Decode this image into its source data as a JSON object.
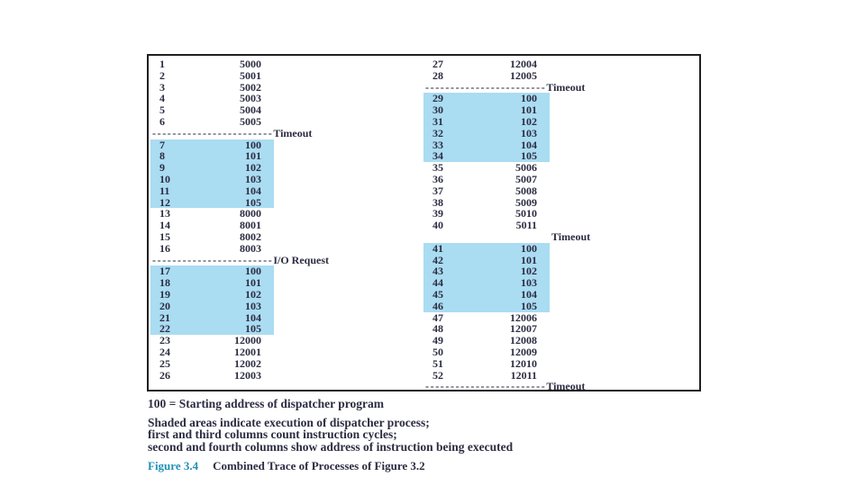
{
  "colors": {
    "shaded": "#aadcf2",
    "text": "#2c2c42",
    "figure_label": "#2191b5",
    "border": "#1f1f1f"
  },
  "trace": {
    "columns": [
      {
        "side": "left",
        "rows": [
          {
            "type": "entry",
            "cycle": "1",
            "addr": "5000",
            "shaded": false
          },
          {
            "type": "entry",
            "cycle": "2",
            "addr": "5001",
            "shaded": false
          },
          {
            "type": "entry",
            "cycle": "3",
            "addr": "5002",
            "shaded": false
          },
          {
            "type": "entry",
            "cycle": "4",
            "addr": "5003",
            "shaded": false
          },
          {
            "type": "entry",
            "cycle": "5",
            "addr": "5004",
            "shaded": false
          },
          {
            "type": "entry",
            "cycle": "6",
            "addr": "5005",
            "shaded": false
          },
          {
            "type": "sep",
            "dashes": "------------------------",
            "label": "Timeout"
          },
          {
            "type": "entry",
            "cycle": "7",
            "addr": "100",
            "shaded": true
          },
          {
            "type": "entry",
            "cycle": "8",
            "addr": "101",
            "shaded": true
          },
          {
            "type": "entry",
            "cycle": "9",
            "addr": "102",
            "shaded": true
          },
          {
            "type": "entry",
            "cycle": "10",
            "addr": "103",
            "shaded": true
          },
          {
            "type": "entry",
            "cycle": "11",
            "addr": "104",
            "shaded": true
          },
          {
            "type": "entry",
            "cycle": "12",
            "addr": "105",
            "shaded": true
          },
          {
            "type": "entry",
            "cycle": "13",
            "addr": "8000",
            "shaded": false
          },
          {
            "type": "entry",
            "cycle": "14",
            "addr": "8001",
            "shaded": false
          },
          {
            "type": "entry",
            "cycle": "15",
            "addr": "8002",
            "shaded": false
          },
          {
            "type": "entry",
            "cycle": "16",
            "addr": "8003",
            "shaded": false
          },
          {
            "type": "sep",
            "dashes": "------------------------",
            "label": "I/O Request"
          },
          {
            "type": "entry",
            "cycle": "17",
            "addr": "100",
            "shaded": true
          },
          {
            "type": "entry",
            "cycle": "18",
            "addr": "101",
            "shaded": true
          },
          {
            "type": "entry",
            "cycle": "19",
            "addr": "102",
            "shaded": true
          },
          {
            "type": "entry",
            "cycle": "20",
            "addr": "103",
            "shaded": true
          },
          {
            "type": "entry",
            "cycle": "21",
            "addr": "104",
            "shaded": true
          },
          {
            "type": "entry",
            "cycle": "22",
            "addr": "105",
            "shaded": true
          },
          {
            "type": "entry",
            "cycle": "23",
            "addr": "12000",
            "shaded": false
          },
          {
            "type": "entry",
            "cycle": "24",
            "addr": "12001",
            "shaded": false
          },
          {
            "type": "entry",
            "cycle": "25",
            "addr": "12002",
            "shaded": false
          },
          {
            "type": "entry",
            "cycle": "26",
            "addr": "12003",
            "shaded": false
          }
        ]
      },
      {
        "side": "right",
        "rows": [
          {
            "type": "entry",
            "cycle": "27",
            "addr": "12004",
            "shaded": false
          },
          {
            "type": "entry",
            "cycle": "28",
            "addr": "12005",
            "shaded": false
          },
          {
            "type": "sep",
            "dashes": "------------------------",
            "label": "Timeout"
          },
          {
            "type": "entry",
            "cycle": "29",
            "addr": "100",
            "shaded": true
          },
          {
            "type": "entry",
            "cycle": "30",
            "addr": "101",
            "shaded": true
          },
          {
            "type": "entry",
            "cycle": "31",
            "addr": "102",
            "shaded": true
          },
          {
            "type": "entry",
            "cycle": "32",
            "addr": "103",
            "shaded": true
          },
          {
            "type": "entry",
            "cycle": "33",
            "addr": "104",
            "shaded": true
          },
          {
            "type": "entry",
            "cycle": "34",
            "addr": "105",
            "shaded": true
          },
          {
            "type": "entry",
            "cycle": "35",
            "addr": "5006",
            "shaded": false
          },
          {
            "type": "entry",
            "cycle": "36",
            "addr": "5007",
            "shaded": false
          },
          {
            "type": "entry",
            "cycle": "37",
            "addr": "5008",
            "shaded": false
          },
          {
            "type": "entry",
            "cycle": "38",
            "addr": "5009",
            "shaded": false
          },
          {
            "type": "entry",
            "cycle": "39",
            "addr": "5010",
            "shaded": false
          },
          {
            "type": "entry",
            "cycle": "40",
            "addr": "5011",
            "shaded": false
          },
          {
            "type": "plain",
            "label": "Timeout"
          },
          {
            "type": "entry",
            "cycle": "41",
            "addr": "100",
            "shaded": true
          },
          {
            "type": "entry",
            "cycle": "42",
            "addr": "101",
            "shaded": true
          },
          {
            "type": "entry",
            "cycle": "43",
            "addr": "102",
            "shaded": true
          },
          {
            "type": "entry",
            "cycle": "44",
            "addr": "103",
            "shaded": true
          },
          {
            "type": "entry",
            "cycle": "45",
            "addr": "104",
            "shaded": true
          },
          {
            "type": "entry",
            "cycle": "46",
            "addr": "105",
            "shaded": true
          },
          {
            "type": "entry",
            "cycle": "47",
            "addr": "12006",
            "shaded": false
          },
          {
            "type": "entry",
            "cycle": "48",
            "addr": "12007",
            "shaded": false
          },
          {
            "type": "entry",
            "cycle": "49",
            "addr": "12008",
            "shaded": false
          },
          {
            "type": "entry",
            "cycle": "50",
            "addr": "12009",
            "shaded": false
          },
          {
            "type": "entry",
            "cycle": "51",
            "addr": "12010",
            "shaded": false
          },
          {
            "type": "entry",
            "cycle": "52",
            "addr": "12011",
            "shaded": false
          },
          {
            "type": "sep",
            "dashes": "------------------------",
            "label": "Timeout"
          }
        ]
      }
    ]
  },
  "notes": {
    "dispatcher_address": "100 = Starting address of dispatcher program",
    "shaded_lines": [
      "Shaded areas indicate execution of dispatcher process;",
      "first and third columns count instruction cycles;",
      "second and fourth columns show address of instruction being executed"
    ]
  },
  "caption": {
    "label": "Figure 3.4",
    "title": "Combined Trace of Processes of Figure 3.2"
  }
}
